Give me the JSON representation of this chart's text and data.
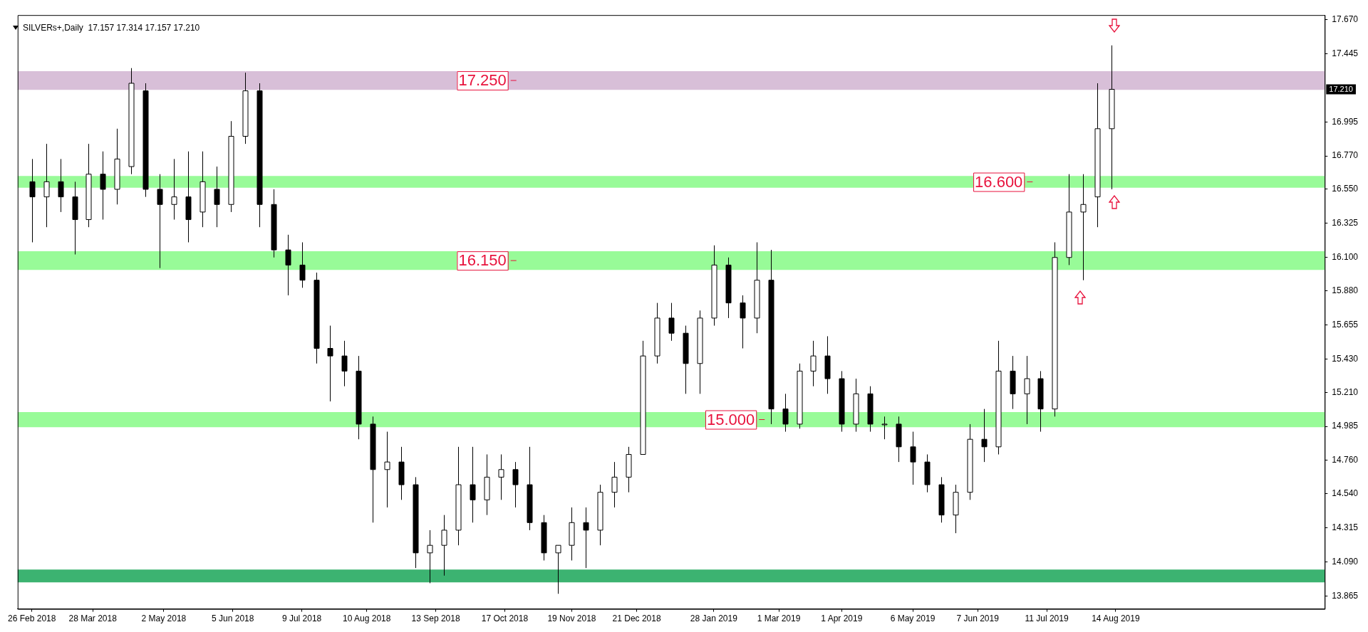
{
  "chart_data": {
    "type": "candlestick",
    "title": "SILVERs+,Daily  17.157 17.314 17.157 17.210",
    "x": [
      "2018-02-26",
      "2018-03-05",
      "2018-03-12",
      "2018-03-19",
      "2018-03-26",
      "2018-04-02",
      "2018-04-09",
      "2018-04-16",
      "2018-04-23",
      "2018-04-30",
      "2018-05-07",
      "2018-05-14",
      "2018-05-21",
      "2018-05-28",
      "2018-06-04",
      "2018-06-11",
      "2018-06-18",
      "2018-06-25",
      "2018-07-02",
      "2018-07-09",
      "2018-07-16",
      "2018-07-23",
      "2018-07-30",
      "2018-08-06",
      "2018-08-13",
      "2018-08-20",
      "2018-08-27",
      "2018-09-03",
      "2018-09-10",
      "2018-09-17",
      "2018-09-24",
      "2018-10-01",
      "2018-10-08",
      "2018-10-15",
      "2018-10-22",
      "2018-10-29",
      "2018-11-05",
      "2018-11-12",
      "2018-11-19",
      "2018-11-26",
      "2018-12-03",
      "2018-12-10",
      "2018-12-17",
      "2018-12-24",
      "2018-12-31",
      "2019-01-07",
      "2019-01-14",
      "2019-01-21",
      "2019-01-28",
      "2019-02-04",
      "2019-02-11",
      "2019-02-18",
      "2019-02-25",
      "2019-03-04",
      "2019-03-11",
      "2019-03-18",
      "2019-03-25",
      "2019-04-01",
      "2019-04-08",
      "2019-04-15",
      "2019-04-22",
      "2019-04-29",
      "2019-05-06",
      "2019-05-13",
      "2019-05-20",
      "2019-05-27",
      "2019-06-03",
      "2019-06-10",
      "2019-06-17",
      "2019-06-24",
      "2019-07-01",
      "2019-07-08",
      "2019-07-15",
      "2019-07-22",
      "2019-07-29",
      "2019-08-05",
      "2019-08-12"
    ],
    "ohlc": [
      [
        16.6,
        16.75,
        16.2,
        16.5
      ],
      [
        16.5,
        16.85,
        16.3,
        16.6
      ],
      [
        16.6,
        16.75,
        16.4,
        16.5
      ],
      [
        16.5,
        16.6,
        16.12,
        16.35
      ],
      [
        16.35,
        16.85,
        16.3,
        16.65
      ],
      [
        16.65,
        16.8,
        16.35,
        16.55
      ],
      [
        16.55,
        16.95,
        16.45,
        16.75
      ],
      [
        16.7,
        17.35,
        16.65,
        17.25
      ],
      [
        17.2,
        17.25,
        16.5,
        16.55
      ],
      [
        16.55,
        16.65,
        16.03,
        16.45
      ],
      [
        16.45,
        16.75,
        16.35,
        16.5
      ],
      [
        16.5,
        16.8,
        16.2,
        16.35
      ],
      [
        16.4,
        16.8,
        16.3,
        16.6
      ],
      [
        16.55,
        16.7,
        16.3,
        16.45
      ],
      [
        16.45,
        17.0,
        16.4,
        16.9
      ],
      [
        16.9,
        17.32,
        16.85,
        17.2
      ],
      [
        17.2,
        17.25,
        16.3,
        16.45
      ],
      [
        16.45,
        16.55,
        16.1,
        16.15
      ],
      [
        16.15,
        16.25,
        15.85,
        16.05
      ],
      [
        16.05,
        16.2,
        15.9,
        15.95
      ],
      [
        15.95,
        16.0,
        15.4,
        15.5
      ],
      [
        15.5,
        15.65,
        15.15,
        15.45
      ],
      [
        15.45,
        15.55,
        15.25,
        15.35
      ],
      [
        15.35,
        15.45,
        14.9,
        15.0
      ],
      [
        15.0,
        15.05,
        14.35,
        14.7
      ],
      [
        14.7,
        14.95,
        14.45,
        14.75
      ],
      [
        14.75,
        14.85,
        14.5,
        14.6
      ],
      [
        14.6,
        14.65,
        14.05,
        14.15
      ],
      [
        14.15,
        14.3,
        13.95,
        14.2
      ],
      [
        14.2,
        14.4,
        14.0,
        14.3
      ],
      [
        14.3,
        14.85,
        14.2,
        14.6
      ],
      [
        14.6,
        14.85,
        14.35,
        14.5
      ],
      [
        14.5,
        14.8,
        14.4,
        14.65
      ],
      [
        14.65,
        14.8,
        14.5,
        14.7
      ],
      [
        14.7,
        14.75,
        14.45,
        14.6
      ],
      [
        14.6,
        14.85,
        14.3,
        14.35
      ],
      [
        14.35,
        14.4,
        14.1,
        14.15
      ],
      [
        14.15,
        14.2,
        13.88,
        14.2
      ],
      [
        14.2,
        14.45,
        14.1,
        14.35
      ],
      [
        14.35,
        14.45,
        14.05,
        14.3
      ],
      [
        14.3,
        14.6,
        14.2,
        14.55
      ],
      [
        14.55,
        14.75,
        14.45,
        14.65
      ],
      [
        14.65,
        14.85,
        14.55,
        14.8
      ],
      [
        14.8,
        15.55,
        14.8,
        15.45
      ],
      [
        15.45,
        15.8,
        15.4,
        15.7
      ],
      [
        15.7,
        15.8,
        15.55,
        15.6
      ],
      [
        15.6,
        15.65,
        15.2,
        15.4
      ],
      [
        15.4,
        15.75,
        15.2,
        15.7
      ],
      [
        15.7,
        16.18,
        15.65,
        16.05
      ],
      [
        16.05,
        16.1,
        15.7,
        15.8
      ],
      [
        15.8,
        15.85,
        15.5,
        15.7
      ],
      [
        15.7,
        16.2,
        15.6,
        15.95
      ],
      [
        15.95,
        16.15,
        15.0,
        15.1
      ],
      [
        15.1,
        15.2,
        14.95,
        15.0
      ],
      [
        15.0,
        15.4,
        14.97,
        15.35
      ],
      [
        15.35,
        15.55,
        15.25,
        15.45
      ],
      [
        15.45,
        15.58,
        15.2,
        15.3
      ],
      [
        15.3,
        15.35,
        14.95,
        15.0
      ],
      [
        15.0,
        15.3,
        14.95,
        15.2
      ],
      [
        15.2,
        15.25,
        14.95,
        15.0
      ],
      [
        15.0,
        15.05,
        14.9,
        15.0
      ],
      [
        15.0,
        15.05,
        14.75,
        14.85
      ],
      [
        14.85,
        14.95,
        14.6,
        14.75
      ],
      [
        14.75,
        14.8,
        14.55,
        14.6
      ],
      [
        14.6,
        14.65,
        14.35,
        14.4
      ],
      [
        14.4,
        14.6,
        14.28,
        14.55
      ],
      [
        14.55,
        15.0,
        14.5,
        14.9
      ],
      [
        14.9,
        15.1,
        14.75,
        14.85
      ],
      [
        14.85,
        15.55,
        14.8,
        15.35
      ],
      [
        15.35,
        15.45,
        15.1,
        15.2
      ],
      [
        15.2,
        15.45,
        15.0,
        15.3
      ],
      [
        15.3,
        15.35,
        14.95,
        15.1
      ],
      [
        15.1,
        16.2,
        15.05,
        16.1
      ],
      [
        16.1,
        16.65,
        16.05,
        16.4
      ],
      [
        16.4,
        16.65,
        15.95,
        16.45
      ],
      [
        16.5,
        17.25,
        16.3,
        16.95
      ],
      [
        16.95,
        17.5,
        16.55,
        17.21
      ]
    ],
    "xlim": [
      "2018-02-19",
      "2019-11-25"
    ],
    "xticks": [
      {
        "value": "2018-02-26",
        "label": "26 Feb 2018"
      },
      {
        "value": "2018-03-28",
        "label": "28 Mar 2018"
      },
      {
        "value": "2018-05-02",
        "label": "2 May 2018"
      },
      {
        "value": "2018-06-05",
        "label": "5 Jun 2018"
      },
      {
        "value": "2018-07-09",
        "label": "9 Jul 2018"
      },
      {
        "value": "2018-08-10",
        "label": "10 Aug 2018"
      },
      {
        "value": "2018-09-13",
        "label": "13 Sep 2018"
      },
      {
        "value": "2018-10-17",
        "label": "17 Oct 2018"
      },
      {
        "value": "2018-11-19",
        "label": "19 Nov 2018"
      },
      {
        "value": "2018-12-21",
        "label": "21 Dec 2018"
      },
      {
        "value": "2019-01-28",
        "label": "28 Jan 2019"
      },
      {
        "value": "2019-03-01",
        "label": "1 Mar 2019"
      },
      {
        "value": "2019-04-01",
        "label": "1 Apr 2019"
      },
      {
        "value": "2019-05-06",
        "label": "6 May 2019"
      },
      {
        "value": "2019-06-07",
        "label": "7 Jun 2019"
      },
      {
        "value": "2019-07-11",
        "label": "11 Jul 2019"
      },
      {
        "value": "2019-08-14",
        "label": "14 Aug 2019"
      }
    ],
    "ylim": [
      13.78,
      17.7
    ],
    "yticks": [
      {
        "value": 13.865,
        "label": "13.865"
      },
      {
        "value": 14.09,
        "label": "14.090"
      },
      {
        "value": 14.315,
        "label": "14.315"
      },
      {
        "value": 14.54,
        "label": "14.540"
      },
      {
        "value": 14.76,
        "label": "14.760"
      },
      {
        "value": 14.985,
        "label": "14.985"
      },
      {
        "value": 15.21,
        "label": "15.210"
      },
      {
        "value": 15.43,
        "label": "15.430"
      },
      {
        "value": 15.655,
        "label": "15.655"
      },
      {
        "value": 15.88,
        "label": "15.880"
      },
      {
        "value": 16.1,
        "label": "16.100"
      },
      {
        "value": 16.325,
        "label": "16.325"
      },
      {
        "value": 16.55,
        "label": "16.550"
      },
      {
        "value": 16.77,
        "label": "16.770"
      },
      {
        "value": 16.995,
        "label": "16.995"
      },
      {
        "value": 17.445,
        "label": "17.445"
      },
      {
        "value": 17.67,
        "label": "17.670"
      }
    ],
    "bands": [
      {
        "axis": "y",
        "from": 17.207,
        "to": 17.33,
        "label": "17.250",
        "color": "#d8bfd8"
      },
      {
        "axis": "y",
        "from": 16.018,
        "to": 16.141,
        "label": "16.150",
        "color": "#98fb98"
      },
      {
        "axis": "y",
        "from": 16.56,
        "to": 16.638,
        "label": "16.600",
        "color": "#98fb98"
      },
      {
        "axis": "y",
        "from": 14.98,
        "to": 15.08,
        "label": "15.000",
        "color": "#98fb98"
      },
      {
        "axis": "y",
        "from": 13.955,
        "to": 14.04,
        "color": "#3cb371"
      }
    ],
    "ref_lines": [
      {
        "axis": "y",
        "value": 17.21,
        "label": "17.210",
        "color": "#c0c0c0"
      }
    ]
  }
}
